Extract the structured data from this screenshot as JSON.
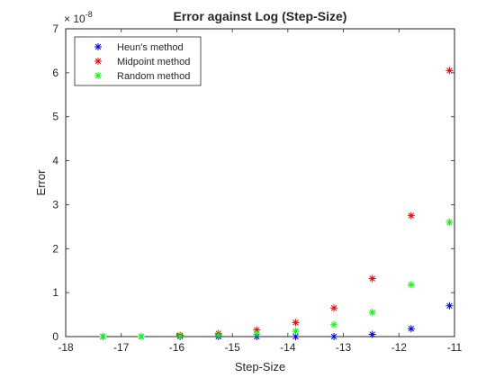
{
  "chart_data": {
    "type": "scatter",
    "title": "Error against Log (Step-Size)",
    "xlabel": "Step-Size",
    "ylabel": "Error",
    "xlim": [
      -18,
      -11
    ],
    "ylim": [
      0,
      7e-08
    ],
    "y_exponent_label": "× 10",
    "y_exponent": "-8",
    "xticks": [
      -18,
      -17,
      -16,
      -15,
      -14,
      -13,
      -12,
      -11
    ],
    "xtick_labels": [
      "-18",
      "-17",
      "-16",
      "-15",
      "-14",
      "-13",
      "-12",
      "-11"
    ],
    "yticks": [
      0,
      1e-08,
      2e-08,
      3e-08,
      4e-08,
      5e-08,
      6e-08,
      7e-08
    ],
    "ytick_labels": [
      "0",
      "1",
      "2",
      "3",
      "4",
      "5",
      "6",
      "7"
    ],
    "grid": false,
    "legend_position": "top-left",
    "marker": "*",
    "series": [
      {
        "name": "Heun's method",
        "color": "#0000ff",
        "points": [
          [
            -17.33,
            0.0
          ],
          [
            -16.64,
            0.0
          ],
          [
            -15.94,
            0.0
          ],
          [
            -15.25,
            0.0
          ],
          [
            -14.56,
            0.0
          ],
          [
            -13.86,
            0.0
          ],
          [
            -13.17,
            0.0
          ],
          [
            -12.48,
            5e-10
          ],
          [
            -11.78,
            1.8e-09
          ],
          [
            -11.09,
            7e-09
          ]
        ]
      },
      {
        "name": "Midpoint method",
        "color": "#ff0000",
        "points": [
          [
            -15.94,
            3e-10
          ],
          [
            -15.25,
            7e-10
          ],
          [
            -14.56,
            1.5e-09
          ],
          [
            -13.86,
            3.2e-09
          ],
          [
            -13.17,
            6.5e-09
          ],
          [
            -12.48,
            1.32e-08
          ],
          [
            -11.78,
            2.75e-08
          ],
          [
            -11.09,
            6.05e-08
          ]
        ]
      },
      {
        "name": "Random method",
        "color": "#00ff00",
        "points": [
          [
            -17.33,
            0.0
          ],
          [
            -16.64,
            0.0
          ],
          [
            -15.94,
            1e-10
          ],
          [
            -15.25,
            3e-10
          ],
          [
            -14.56,
            6e-10
          ],
          [
            -13.86,
            1.2e-09
          ],
          [
            -13.17,
            2.7e-09
          ],
          [
            -12.48,
            5.5e-09
          ],
          [
            -11.78,
            1.18e-08
          ],
          [
            -11.09,
            2.6e-08
          ]
        ]
      }
    ]
  }
}
